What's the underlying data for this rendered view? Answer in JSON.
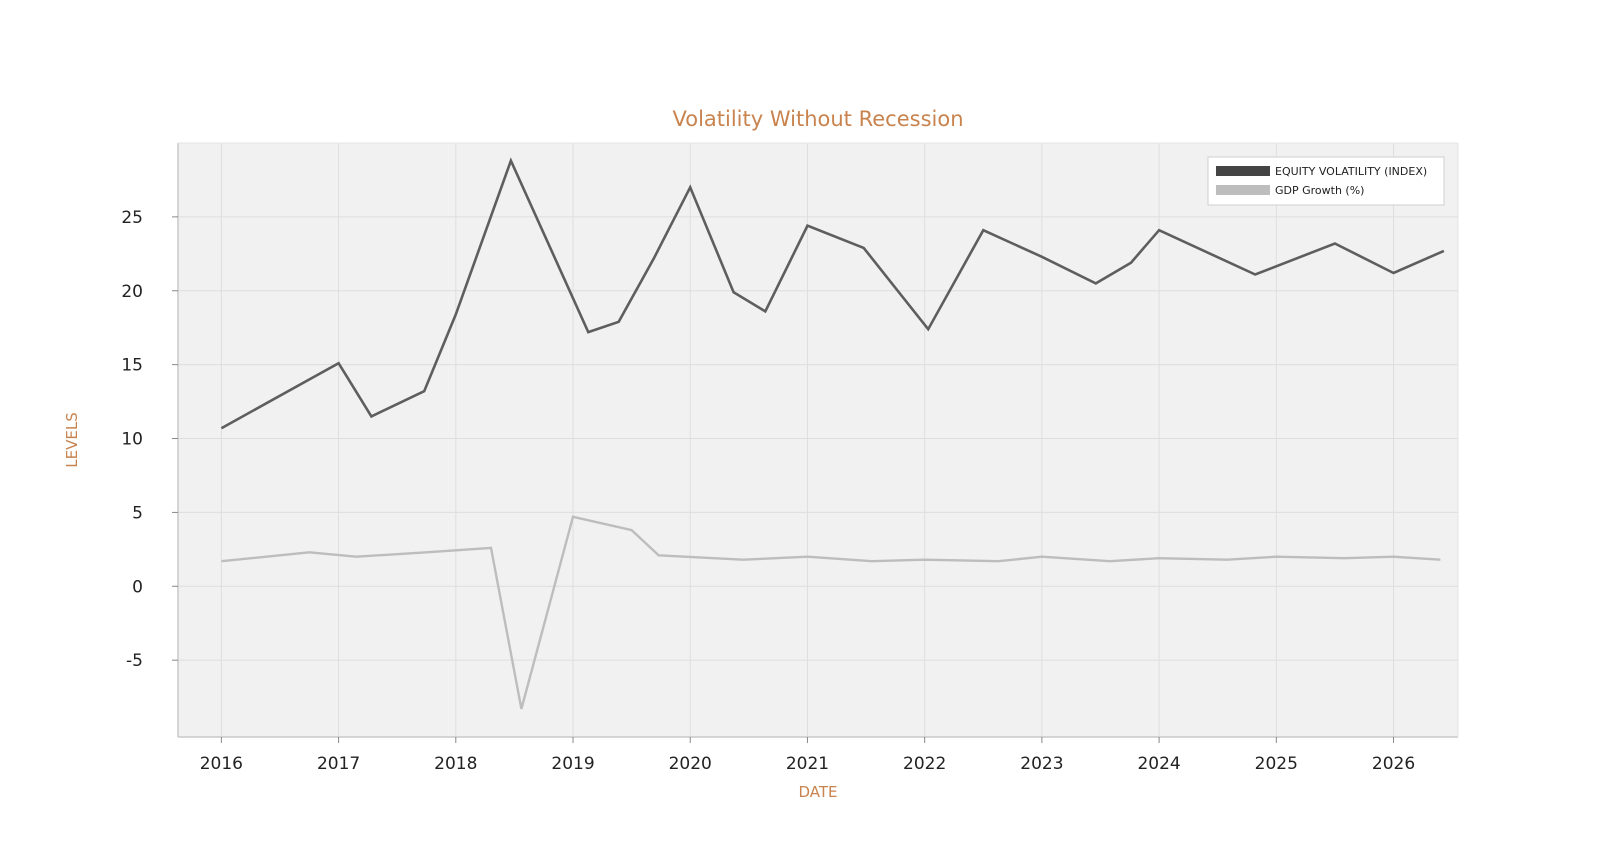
{
  "colors": {
    "accent": "#C8834E",
    "plot_background": "#F1F1F1",
    "grid": "#DEDEDE",
    "axis": "#C9C9C9",
    "series_dark": "#5E5E5E",
    "series_light": "#BDBDBD",
    "legend_dark_swatch": "#444444"
  },
  "chart_data": {
    "type": "line",
    "title": "Volatility Without Recession",
    "xlabel": "DATE",
    "ylabel": "LEVELS",
    "xlim": [
      2015.63,
      2026.55
    ],
    "ylim": [
      -10.2,
      30.0
    ],
    "grid": true,
    "legend_position": "top-right",
    "x_ticks": [
      2016,
      2017,
      2018,
      2019,
      2020,
      2021,
      2022,
      2023,
      2024,
      2025,
      2026
    ],
    "x_tick_labels": [
      "2016",
      "2017",
      "2018",
      "2019",
      "2020",
      "2021",
      "2022",
      "2023",
      "2024",
      "2025",
      "2026"
    ],
    "y_ticks": [
      -5,
      0,
      5,
      10,
      15,
      20,
      25
    ],
    "y_tick_labels": [
      "-5",
      "0",
      "5",
      "10",
      "15",
      "20",
      "25"
    ],
    "series": [
      {
        "name": "EQUITY VOLATILITY (INDEX)",
        "color": "#5E5E5E",
        "x": [
          2016.0,
          2017.0,
          2017.28,
          2017.73,
          2018.0,
          2018.47,
          2019.13,
          2019.39,
          2019.69,
          2020.0,
          2020.37,
          2020.64,
          2021.0,
          2021.48,
          2022.03,
          2022.5,
          2023.0,
          2023.46,
          2023.76,
          2024.0,
          2024.82,
          2025.5,
          2026.0,
          2026.43
        ],
        "values": [
          10.7,
          15.1,
          11.5,
          13.2,
          18.4,
          28.8,
          17.2,
          17.9,
          22.2,
          27.0,
          19.9,
          18.6,
          24.4,
          22.9,
          17.4,
          24.1,
          22.3,
          20.5,
          21.9,
          24.1,
          21.1,
          23.2,
          21.2,
          22.7
        ]
      },
      {
        "name": "GDP Growth (%)",
        "color": "#BDBDBD",
        "x": [
          2016.0,
          2016.75,
          2017.15,
          2017.75,
          2018.3,
          2018.56,
          2019.0,
          2019.5,
          2019.73,
          2020.45,
          2021.0,
          2021.55,
          2022.0,
          2022.63,
          2023.0,
          2023.58,
          2024.0,
          2024.58,
          2025.0,
          2025.58,
          2026.0,
          2026.4
        ],
        "values": [
          1.7,
          2.3,
          2.0,
          2.3,
          2.6,
          -8.3,
          4.7,
          3.8,
          2.1,
          1.8,
          2.0,
          1.7,
          1.8,
          1.7,
          2.0,
          1.7,
          1.9,
          1.8,
          2.0,
          1.9,
          2.0,
          1.8
        ]
      }
    ]
  }
}
